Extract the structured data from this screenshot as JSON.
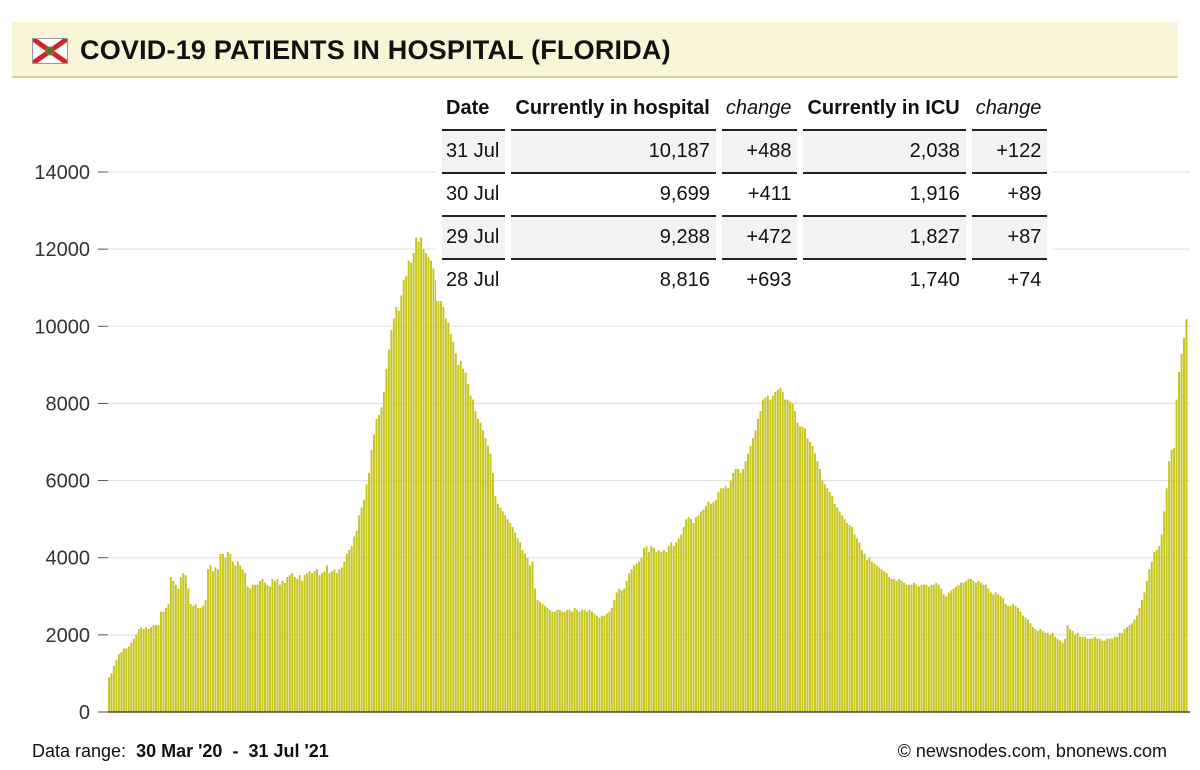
{
  "header": {
    "title": "COVID-19 PATIENTS IN HOSPITAL (FLORIDA)"
  },
  "table": {
    "headers": [
      "Date",
      "Currently in hospital",
      "change",
      "Currently in ICU",
      "change"
    ],
    "rows": [
      [
        "31 Jul",
        "10,187",
        "+488",
        "2,038",
        "+122"
      ],
      [
        "30 Jul",
        "9,699",
        "+411",
        "1,916",
        "+89"
      ],
      [
        "29 Jul",
        "9,288",
        "+472",
        "1,827",
        "+87"
      ],
      [
        "28 Jul",
        "8,816",
        "+693",
        "1,740",
        "+74"
      ]
    ]
  },
  "footer": {
    "range_label": "Data range:",
    "range_start": "30 Mar '20",
    "range_sep": "-",
    "range_end": "31 Jul '21",
    "credit": "© newsnodes.com, bnonews.com"
  },
  "colors": {
    "bar": "#c4c41a",
    "bar_edge": "#aeae10",
    "grid": "#dddddd",
    "header_bg": "#f8f6d6"
  },
  "chart_data": {
    "type": "bar",
    "title": "COVID-19 PATIENTS IN HOSPITAL (FLORIDA)",
    "xlabel": "",
    "ylabel": "",
    "x_start": "2020-03-30",
    "x_end": "2021-07-31",
    "ylim": [
      0,
      14000
    ],
    "yticks": [
      0,
      2000,
      4000,
      6000,
      8000,
      10000,
      12000,
      14000
    ],
    "grid": true,
    "series": [
      {
        "values": [
          900,
          1000,
          1200,
          1350,
          1500,
          1550,
          1650,
          1650,
          1700,
          1800,
          1900,
          2000,
          2150,
          2200,
          2150,
          2200,
          2150,
          2200,
          2250,
          2250,
          2250,
          2600,
          2600,
          2700,
          2800,
          3500,
          3400,
          3300,
          3200,
          3500,
          3600,
          3550,
          3200,
          2800,
          2750,
          2800,
          2700,
          2700,
          2750,
          2900,
          3700,
          3800,
          3650,
          3750,
          3700,
          4100,
          4100,
          4000,
          4150,
          4100,
          3900,
          3800,
          3900,
          3800,
          3700,
          3600,
          3250,
          3200,
          3300,
          3300,
          3300,
          3400,
          3450,
          3350,
          3300,
          3250,
          3450,
          3400,
          3450,
          3300,
          3400,
          3350,
          3500,
          3550,
          3600,
          3500,
          3450,
          3550,
          3400,
          3550,
          3600,
          3650,
          3600,
          3650,
          3700,
          3550,
          3600,
          3650,
          3800,
          3600,
          3650,
          3700,
          3600,
          3700,
          3750,
          3900,
          4100,
          4200,
          4300,
          4550,
          4700,
          5100,
          5300,
          5500,
          5900,
          6200,
          6800,
          7200,
          7600,
          7700,
          7900,
          8300,
          8900,
          9400,
          9900,
          10200,
          10500,
          10400,
          10800,
          11200,
          11300,
          11700,
          11650,
          11900,
          12300,
          12200,
          12300,
          12000,
          11900,
          11800,
          11700,
          11500,
          11200,
          10800,
          10700,
          10500,
          10200,
          10100,
          9800,
          9600,
          9300,
          9000,
          9100,
          8900,
          8800,
          8500,
          8200,
          8100,
          7800,
          7600,
          7500,
          7300,
          7100,
          6900,
          6700,
          6200,
          5600,
          5400,
          5300,
          5200,
          5100,
          5000,
          4900,
          4800,
          4650,
          4500,
          4400,
          4200,
          4100,
          4000,
          3800,
          3900,
          3200,
          2900,
          2850,
          2800,
          2750,
          2700,
          2650,
          2600,
          2600,
          2650,
          2650,
          2600,
          2600,
          2650,
          2650,
          2600,
          2700,
          2650,
          2600,
          2650,
          2650,
          2600,
          2650,
          2600,
          2550,
          2500,
          2450,
          2500,
          2500,
          2550,
          2600,
          2700,
          2900,
          3100,
          3200,
          3150,
          3200,
          3400,
          3600,
          3700,
          3800,
          3850,
          3900,
          4000,
          4250,
          4300,
          4150,
          4300,
          4250,
          4150,
          4200,
          4150,
          4200,
          4150,
          4300,
          4400,
          4300,
          4400,
          4500,
          4600,
          4800,
          5000,
          5050,
          5000,
          4900,
          5050,
          5100,
          5200,
          5250,
          5350,
          5450,
          5400,
          5450,
          5500,
          5700,
          5800,
          5800,
          5850,
          5800,
          6000,
          6200,
          6300,
          6300,
          6200,
          6300,
          6500,
          6700,
          6900,
          7100,
          7300,
          7600,
          7800,
          8100,
          8150,
          8200,
          8100,
          8200,
          8300,
          8350,
          8400,
          8300,
          8100,
          8100,
          8050,
          8000,
          7800,
          7500,
          7400,
          7400,
          7350,
          7100,
          7000,
          6900,
          6700,
          6500,
          6300,
          6000,
          5900,
          5800,
          5700,
          5600,
          5400,
          5300,
          5200,
          5100,
          5000,
          4900,
          4850,
          4800,
          4600,
          4500,
          4400,
          4200,
          4100,
          3950,
          4000,
          3900,
          3850,
          3800,
          3750,
          3700,
          3650,
          3600,
          3500,
          3450,
          3450,
          3400,
          3450,
          3400,
          3350,
          3300,
          3300,
          3300,
          3350,
          3300,
          3250,
          3300,
          3300,
          3300,
          3250,
          3300,
          3300,
          3350,
          3300,
          3200,
          3050,
          3000,
          3100,
          3150,
          3200,
          3250,
          3300,
          3350,
          3350,
          3400,
          3450,
          3450,
          3400,
          3350,
          3400,
          3350,
          3300,
          3300,
          3200,
          3100,
          3050,
          3100,
          3050,
          3000,
          2950,
          2800,
          2750,
          2750,
          2800,
          2750,
          2700,
          2600,
          2500,
          2450,
          2400,
          2300,
          2200,
          2150,
          2100,
          2150,
          2100,
          2050,
          2050,
          2000,
          2050,
          1950,
          1900,
          1850,
          1800,
          1900,
          2250,
          2150,
          2100,
          2000,
          2050,
          1950,
          1950,
          1950,
          1900,
          1900,
          1900,
          1950,
          1900,
          1900,
          1850,
          1850,
          1900,
          1900,
          1900,
          1950,
          1950,
          2050,
          2050,
          2150,
          2200,
          2250,
          2300,
          2400,
          2500,
          2700,
          2900,
          3100,
          3400,
          3700,
          3900,
          4150,
          4200,
          4300,
          4600,
          5200,
          5800,
          6500,
          6800,
          6850,
          8100,
          8816,
          9288,
          9699,
          10187
        ]
      }
    ]
  }
}
